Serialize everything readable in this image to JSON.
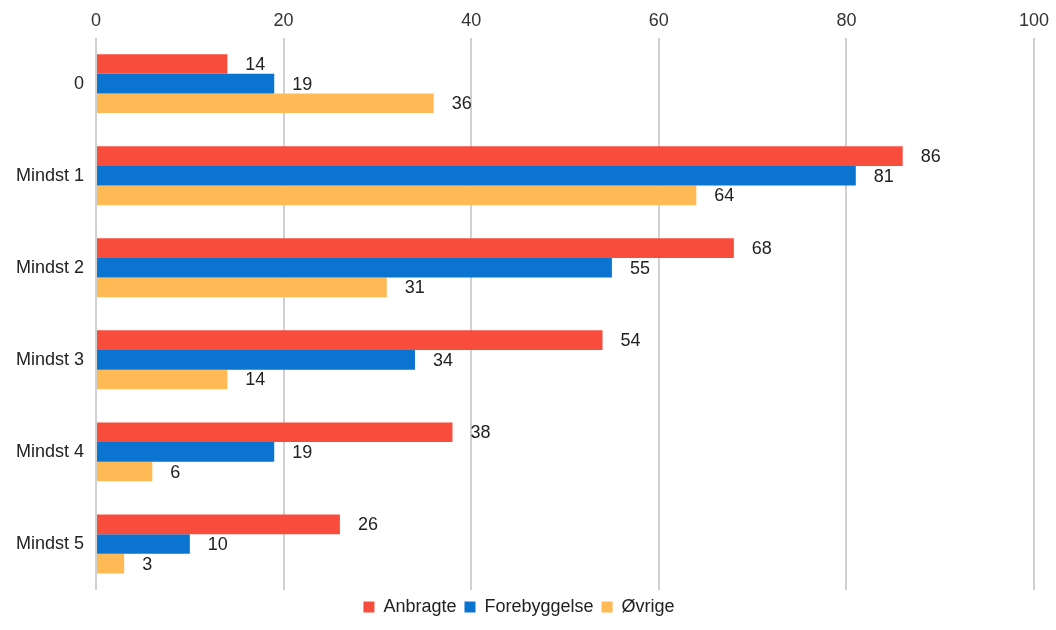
{
  "chart_data": {
    "type": "bar",
    "orientation": "horizontal",
    "categories": [
      "0",
      "Mindst 1",
      "Mindst 2",
      "Mindst 3",
      "Mindst 4",
      "Mindst 5"
    ],
    "series": [
      {
        "name": "Anbragte",
        "color": "#f84c3c",
        "values": [
          14,
          86,
          68,
          54,
          38,
          26
        ]
      },
      {
        "name": "Forebyggelse",
        "color": "#0a74d0",
        "values": [
          19,
          81,
          55,
          34,
          19,
          10
        ]
      },
      {
        "name": "Øvrige",
        "color": "#ffb955",
        "values": [
          36,
          64,
          31,
          14,
          6,
          3
        ]
      }
    ],
    "xlim": [
      0,
      100
    ],
    "xticks": [
      0,
      20,
      40,
      60,
      80,
      100
    ],
    "grid": "x",
    "legend": "bottom",
    "data_labels": true
  }
}
